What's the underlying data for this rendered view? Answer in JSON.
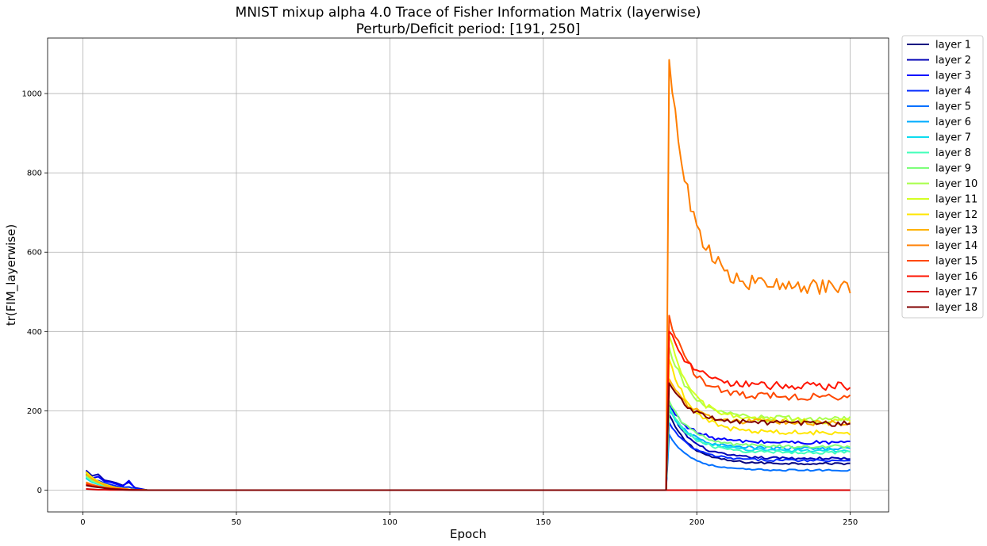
{
  "chart_data": {
    "type": "line",
    "title": "MNIST mixup alpha 4.0 Trace of Fisher Information Matrix (layerwise)",
    "subtitle": "Perturb/Deficit period: [191, 250]",
    "xlabel": "Epoch",
    "ylabel": "tr(FIM_layerwise)",
    "xlim": [
      -11.5,
      262.5
    ],
    "ylim": [
      -55,
      1140
    ],
    "xticks": [
      0,
      50,
      100,
      150,
      200,
      250
    ],
    "yticks": [
      0,
      200,
      400,
      600,
      800,
      1000
    ],
    "grid": true,
    "legend_position": "outside-right-top",
    "series": [
      {
        "name": "layer 1",
        "color": "#000080",
        "early": [
          45,
          30,
          20,
          12,
          6,
          3,
          2,
          1,
          0.5,
          0.2
        ],
        "peak": 190,
        "final": 67
      },
      {
        "name": "layer 2",
        "color": "#0000b6",
        "early": [
          50,
          36,
          40,
          25,
          22,
          18,
          12,
          20,
          6,
          3
        ],
        "peak": 210,
        "final": 80
      },
      {
        "name": "layer 3",
        "color": "#0000ff",
        "early": [
          42,
          30,
          34,
          22,
          20,
          15,
          10,
          24,
          4,
          2
        ],
        "peak": 215,
        "final": 120
      },
      {
        "name": "layer 4",
        "color": "#0028ff",
        "early": [
          38,
          26,
          24,
          18,
          14,
          10,
          7,
          8,
          3,
          1
        ],
        "peak": 170,
        "final": 75
      },
      {
        "name": "layer 5",
        "color": "#0070ff",
        "early": [
          30,
          20,
          15,
          10,
          8,
          5,
          3,
          2,
          1,
          0.5
        ],
        "peak": 140,
        "final": 50
      },
      {
        "name": "layer 6",
        "color": "#00acff",
        "early": [
          32,
          22,
          16,
          11,
          8,
          5,
          3,
          2,
          1,
          0.5
        ],
        "peak": 200,
        "final": 105
      },
      {
        "name": "layer 7",
        "color": "#0ddcef",
        "early": [
          30,
          20,
          15,
          10,
          7,
          5,
          3,
          2,
          1,
          0.5
        ],
        "peak": 205,
        "final": 100
      },
      {
        "name": "layer 8",
        "color": "#42ffba",
        "early": [
          34,
          22,
          16,
          11,
          8,
          5,
          3,
          2,
          1,
          0.5
        ],
        "peak": 210,
        "final": 95
      },
      {
        "name": "layer 9",
        "color": "#7dff7a",
        "early": [
          36,
          24,
          18,
          12,
          8,
          5,
          3,
          2,
          1,
          0.5
        ],
        "peak": 225,
        "final": 110
      },
      {
        "name": "layer 10",
        "color": "#aaff4d",
        "early": [
          40,
          28,
          20,
          14,
          9,
          6,
          4,
          2,
          1,
          0.5
        ],
        "peak": 360,
        "final": 180
      },
      {
        "name": "layer 11",
        "color": "#d4ff23",
        "early": [
          44,
          30,
          22,
          15,
          10,
          6,
          4,
          2,
          1,
          0.5
        ],
        "peak": 390,
        "final": 175
      },
      {
        "name": "layer 12",
        "color": "#ffe600",
        "early": [
          46,
          32,
          22,
          15,
          10,
          6,
          4,
          2,
          1,
          0.5
        ],
        "peak": 330,
        "final": 145
      },
      {
        "name": "layer 13",
        "color": "#ffb200",
        "early": [
          40,
          28,
          20,
          13,
          9,
          6,
          4,
          2,
          1,
          0.5
        ],
        "peak": 280,
        "final": 170
      },
      {
        "name": "layer 14",
        "color": "#ff7e00",
        "early": [
          20,
          14,
          10,
          7,
          5,
          3,
          2,
          1,
          0.5,
          0.2
        ],
        "peak": 1085,
        "final": 510
      },
      {
        "name": "layer 15",
        "color": "#ff4800",
        "early": [
          16,
          12,
          9,
          6,
          4,
          3,
          2,
          1,
          0.5,
          0.2
        ],
        "peak": 440,
        "final": 235
      },
      {
        "name": "layer 16",
        "color": "#ff1400",
        "early": [
          14,
          10,
          8,
          6,
          4,
          3,
          2,
          1,
          0.5,
          0.2
        ],
        "peak": 400,
        "final": 262
      },
      {
        "name": "layer 17",
        "color": "#d90000",
        "early": [
          3,
          2,
          1,
          1,
          0.5,
          0.5,
          0.3,
          0.2,
          0.1,
          0.1
        ],
        "peak": 0,
        "final": 0
      },
      {
        "name": "layer 18",
        "color": "#800000",
        "early": [
          12,
          9,
          7,
          5,
          3,
          2,
          1,
          0.5,
          0.3,
          0.2
        ],
        "peak": 270,
        "final": 168
      }
    ]
  }
}
